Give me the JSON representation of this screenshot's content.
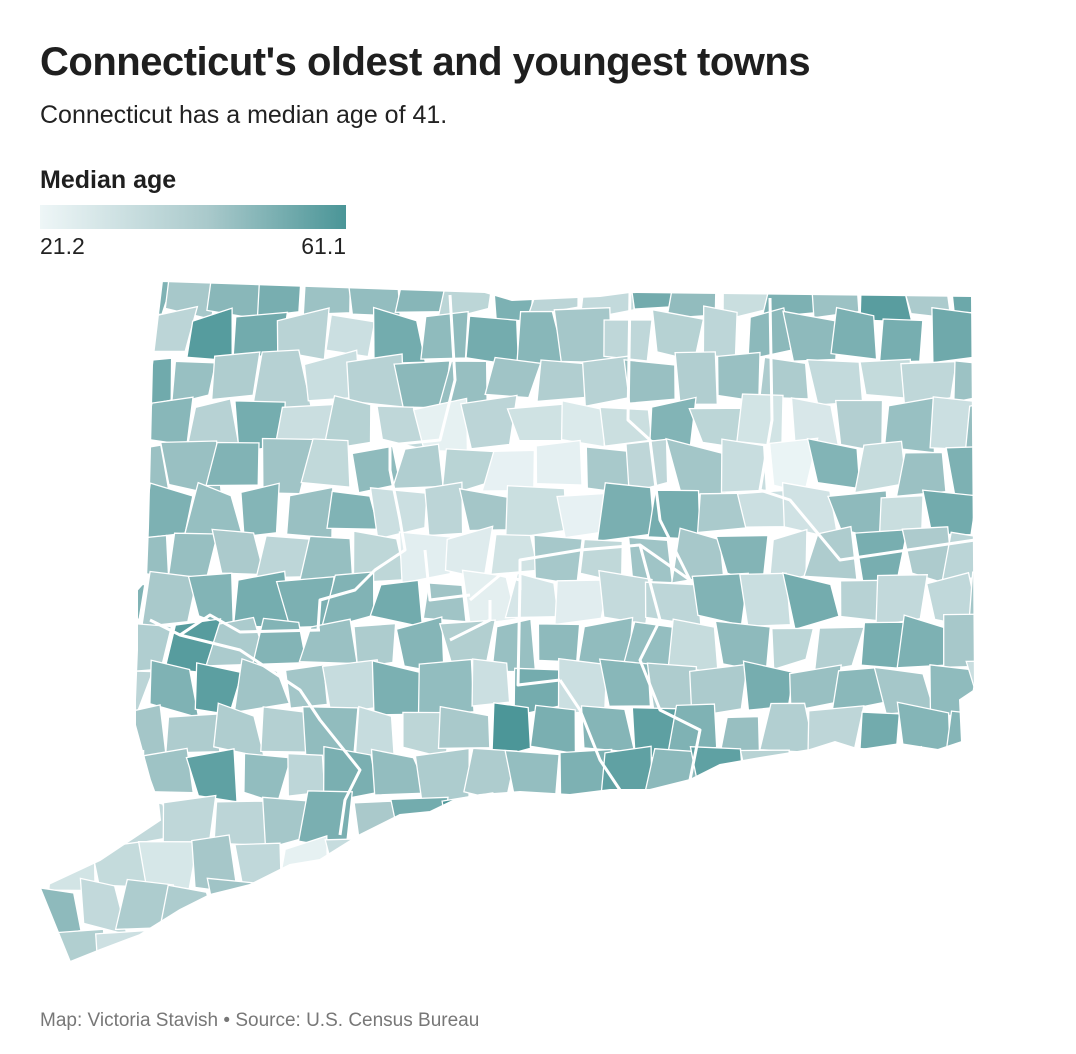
{
  "header": {
    "title": "Connecticut's oldest and youngest towns",
    "subtitle": "Connecticut has a median age of 41."
  },
  "legend": {
    "title": "Median age",
    "min_label": "21.2",
    "max_label": "61.1",
    "color_low": "#eef6f7",
    "color_mid": "#a9c9cb",
    "color_high": "#4a9597"
  },
  "map": {
    "region": "Connecticut",
    "unit": "towns",
    "fill_border_color": "#ffffff",
    "county_border_color": "#ffffff"
  },
  "footer": {
    "credit": "Map: Victoria Stavish • Source: U.S. Census Bureau"
  }
}
